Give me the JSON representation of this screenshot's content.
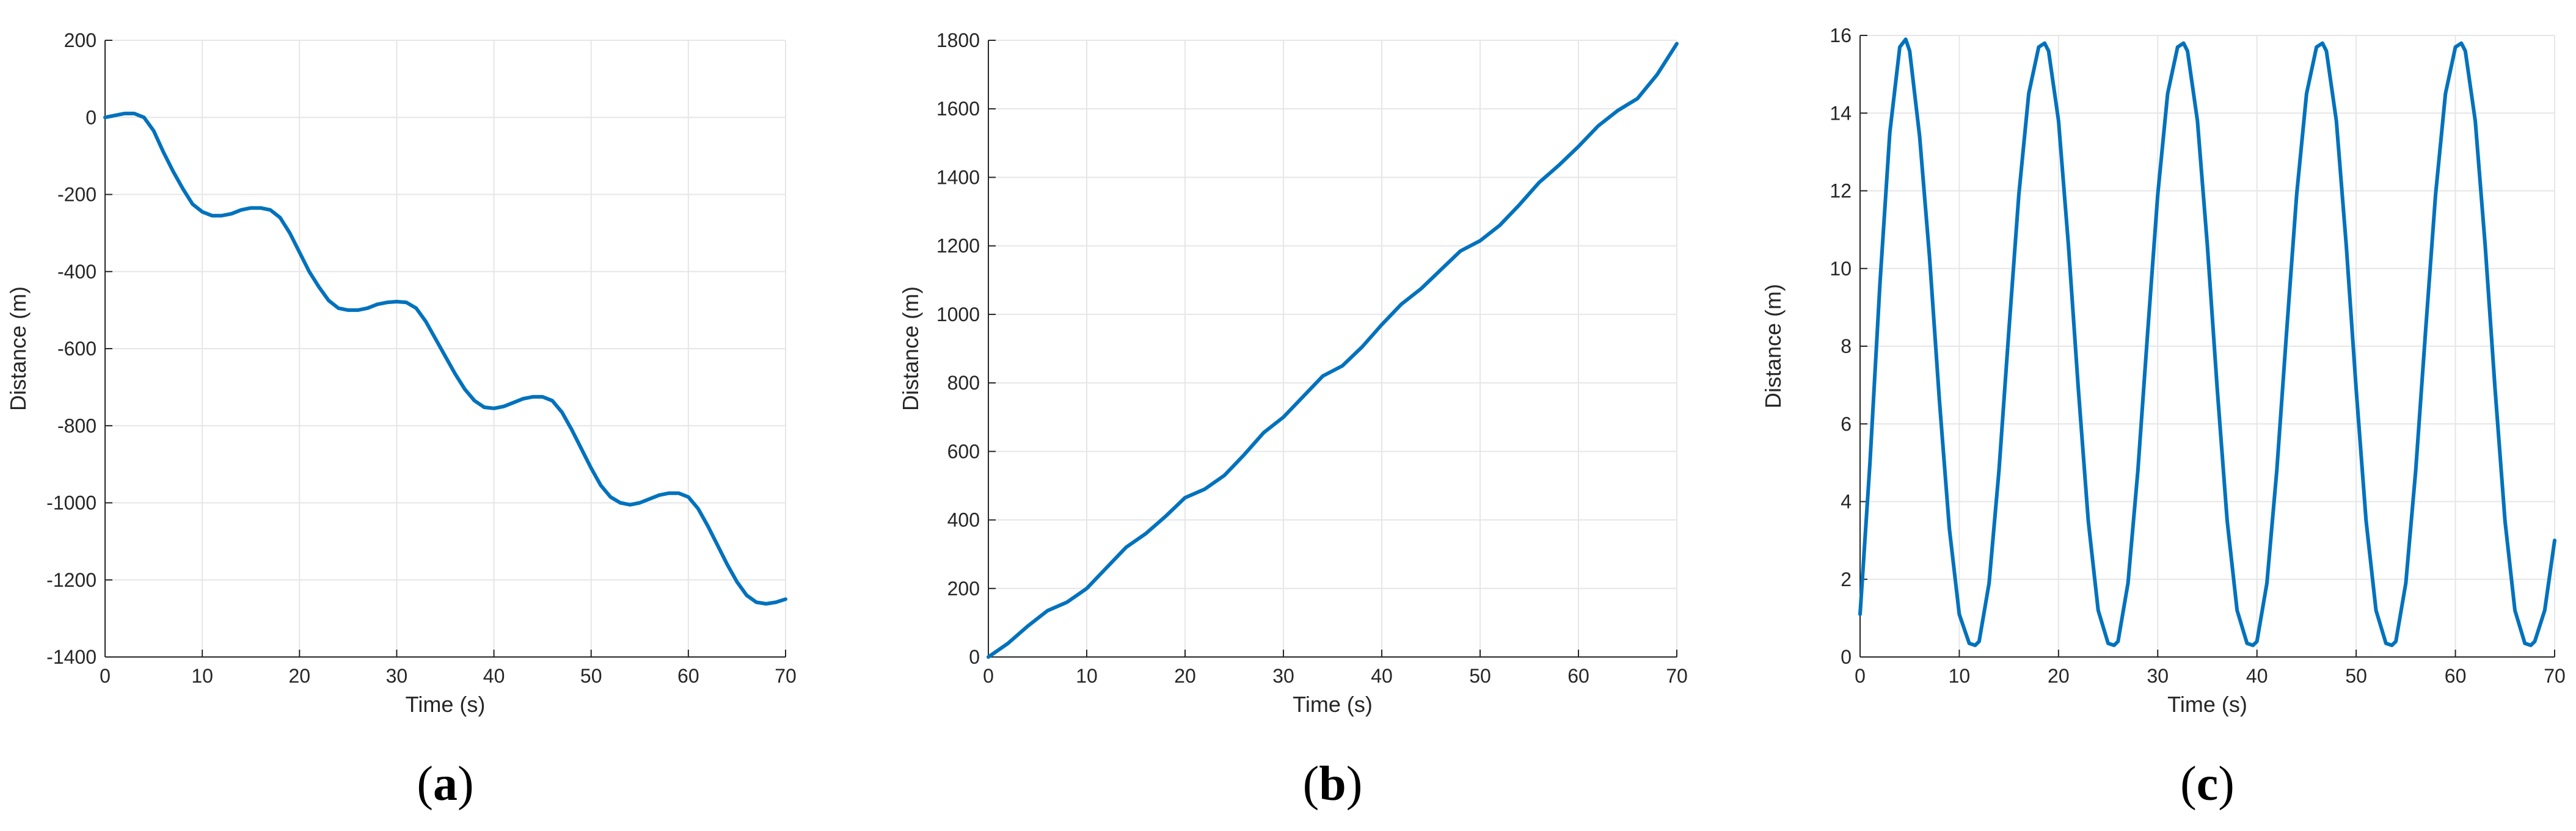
{
  "colors": {
    "series": "#0072BD",
    "grid": "#e6e6e6",
    "axis": "#262626"
  },
  "chart_data": [
    {
      "panel": "a",
      "type": "line",
      "xlabel": "Time (s)",
      "ylabel": "Distance (m)",
      "xlim": [
        0,
        70
      ],
      "ylim": [
        -1400,
        200
      ],
      "xticks": [
        0,
        10,
        20,
        30,
        40,
        50,
        60,
        70
      ],
      "yticks": [
        -1400,
        -1200,
        -1000,
        -800,
        -600,
        -400,
        -200,
        0,
        200
      ],
      "grid": true,
      "series": [
        {
          "x": [
            0,
            1,
            2,
            3,
            4,
            5,
            6,
            7,
            8,
            9,
            10,
            11,
            12,
            13,
            14,
            15,
            16,
            17,
            18,
            19,
            20,
            21,
            22,
            23,
            24,
            25,
            26,
            27,
            28,
            29,
            30,
            31,
            32,
            33,
            34,
            35,
            36,
            37,
            38,
            39,
            40,
            41,
            42,
            43,
            44,
            45,
            46,
            47,
            48,
            49,
            50,
            51,
            52,
            53,
            54,
            55,
            56,
            57,
            58,
            59,
            60,
            61,
            62,
            63,
            64,
            65,
            66,
            67,
            68,
            69,
            70
          ],
          "y": [
            0,
            5,
            10,
            10,
            0,
            -35,
            -90,
            -140,
            -185,
            -225,
            -245,
            -255,
            -255,
            -250,
            -240,
            -235,
            -235,
            -240,
            -260,
            -300,
            -350,
            -400,
            -440,
            -475,
            -495,
            -500,
            -500,
            -495,
            -485,
            -480,
            -478,
            -480,
            -495,
            -530,
            -575,
            -620,
            -665,
            -705,
            -735,
            -752,
            -755,
            -750,
            -740,
            -730,
            -725,
            -725,
            -735,
            -765,
            -810,
            -860,
            -910,
            -955,
            -985,
            -1000,
            -1005,
            -1000,
            -990,
            -980,
            -975,
            -975,
            -985,
            -1015,
            -1060,
            -1110,
            -1160,
            -1205,
            -1240,
            -1258,
            -1262,
            -1258,
            -1250
          ]
        }
      ]
    },
    {
      "panel": "b",
      "type": "line",
      "xlabel": "Time (s)",
      "ylabel": "Distance (m)",
      "xlim": [
        0,
        70
      ],
      "ylim": [
        0,
        1800
      ],
      "xticks": [
        0,
        10,
        20,
        30,
        40,
        50,
        60,
        70
      ],
      "yticks": [
        0,
        200,
        400,
        600,
        800,
        1000,
        1200,
        1400,
        1600,
        1800
      ],
      "grid": true,
      "series": [
        {
          "x": [
            0,
            2,
            4,
            6,
            8,
            10,
            12,
            14,
            16,
            18,
            20,
            22,
            24,
            26,
            28,
            30,
            32,
            34,
            36,
            38,
            40,
            42,
            44,
            46,
            48,
            50,
            52,
            54,
            56,
            58,
            60,
            62,
            64,
            66,
            68,
            70
          ],
          "y": [
            0,
            40,
            90,
            135,
            160,
            200,
            260,
            320,
            360,
            410,
            465,
            490,
            530,
            590,
            655,
            700,
            760,
            820,
            850,
            905,
            970,
            1030,
            1075,
            1130,
            1185,
            1215,
            1260,
            1320,
            1385,
            1435,
            1490,
            1550,
            1595,
            1630,
            1700,
            1790
          ]
        }
      ]
    },
    {
      "panel": "c",
      "type": "line",
      "xlabel": "Time (s)",
      "ylabel": "Distance (m)",
      "xlim": [
        0,
        70
      ],
      "ylim": [
        0,
        16
      ],
      "xticks": [
        0,
        10,
        20,
        30,
        40,
        50,
        60,
        70
      ],
      "yticks": [
        0,
        2,
        4,
        6,
        8,
        10,
        12,
        14,
        16
      ],
      "grid": true,
      "series": [
        {
          "x": [
            0,
            1,
            2,
            3,
            4,
            4.6,
            5,
            6,
            7,
            8,
            9,
            10,
            11,
            11.6,
            12,
            13,
            14,
            15,
            16,
            17,
            18,
            18.6,
            19,
            20,
            21,
            22,
            23,
            24,
            25,
            25.6,
            26,
            27,
            28,
            29,
            30,
            31,
            32,
            32.6,
            33,
            34,
            35,
            36,
            37,
            38,
            39,
            39.6,
            40,
            41,
            42,
            43,
            44,
            45,
            46,
            46.6,
            47,
            48,
            49,
            50,
            51,
            52,
            53,
            53.6,
            54,
            55,
            56,
            57,
            58,
            59,
            60,
            60.6,
            61,
            62,
            63,
            64,
            65,
            66,
            67,
            67.6,
            68,
            69,
            70
          ],
          "y": [
            1.1,
            5.0,
            9.6,
            13.5,
            15.7,
            15.9,
            15.6,
            13.4,
            10.3,
            6.6,
            3.3,
            1.1,
            0.35,
            0.3,
            0.4,
            1.9,
            4.8,
            8.4,
            11.9,
            14.5,
            15.7,
            15.8,
            15.6,
            13.8,
            10.6,
            6.9,
            3.5,
            1.2,
            0.35,
            0.3,
            0.4,
            1.9,
            4.8,
            8.4,
            11.9,
            14.5,
            15.7,
            15.8,
            15.6,
            13.8,
            10.6,
            6.9,
            3.5,
            1.2,
            0.35,
            0.3,
            0.4,
            1.9,
            4.8,
            8.4,
            11.9,
            14.5,
            15.7,
            15.8,
            15.6,
            13.8,
            10.6,
            6.9,
            3.5,
            1.2,
            0.35,
            0.3,
            0.4,
            1.9,
            4.8,
            8.4,
            11.9,
            14.5,
            15.7,
            15.8,
            15.6,
            13.8,
            10.6,
            6.9,
            3.5,
            1.2,
            0.35,
            0.3,
            0.4,
            1.2,
            3.0
          ]
        }
      ]
    }
  ],
  "panel_labels": [
    {
      "open": "(",
      "letter": "a",
      "close": ")"
    },
    {
      "open": "(",
      "letter": "b",
      "close": ")"
    },
    {
      "open": "(",
      "letter": "c",
      "close": ")"
    }
  ]
}
